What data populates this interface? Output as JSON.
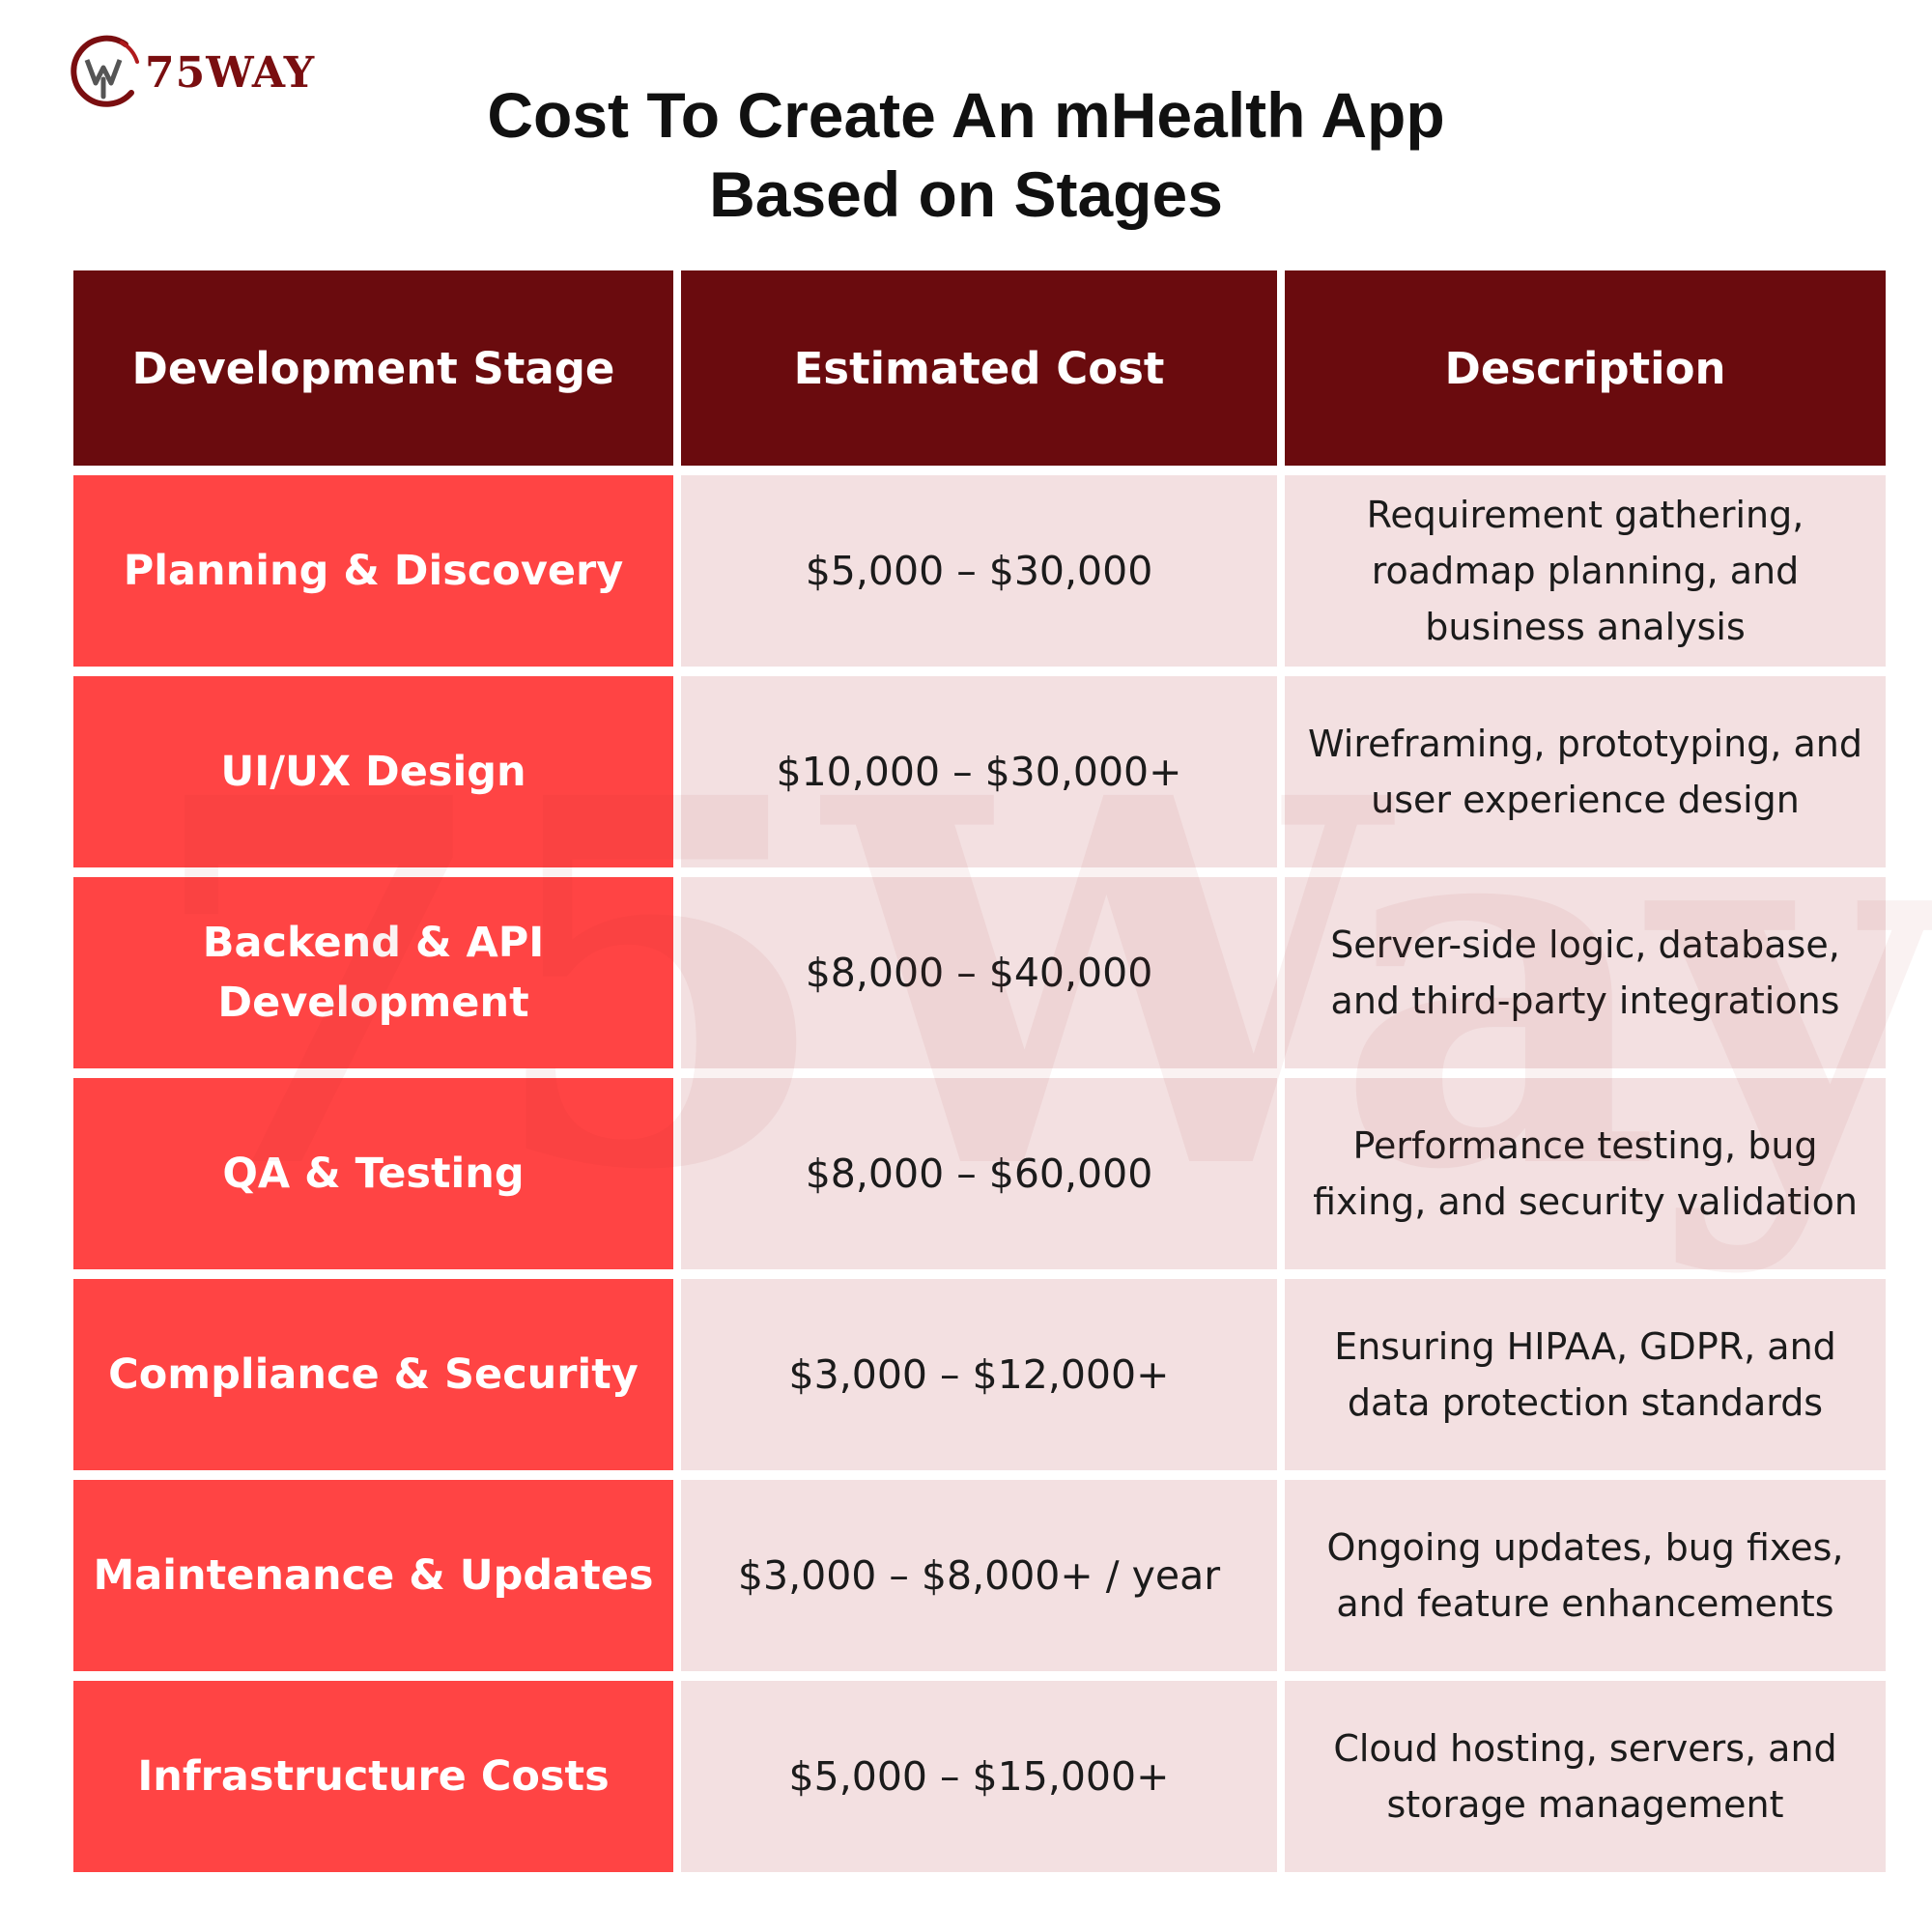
{
  "brand": {
    "name": "75WAY",
    "watermark": "75Way",
    "logo_color": "#7a0e10"
  },
  "title": {
    "line1": "Cost To Create An mHealth App",
    "line2": "Based on Stages"
  },
  "table": {
    "headers": [
      "Development Stage",
      "Estimated Cost",
      "Description"
    ],
    "rows": [
      {
        "stage": "Planning & Discovery",
        "cost": "$5,000 – $30,000",
        "description": "Requirement gathering, roadmap planning, and business analysis"
      },
      {
        "stage": "UI/UX Design",
        "cost": "$10,000 – $30,000+",
        "description": "Wireframing, prototyping, and user experience design"
      },
      {
        "stage": "Backend & API Development",
        "cost": "$8,000 – $40,000",
        "description": "Server-side logic, database, and third-party integrations"
      },
      {
        "stage": "QA & Testing",
        "cost": "$8,000 – $60,000",
        "description": "Performance testing, bug fixing, and security validation"
      },
      {
        "stage": "Compliance & Security",
        "cost": "$3,000 – $12,000+",
        "description": "Ensuring HIPAA, GDPR, and data protection standards"
      },
      {
        "stage": "Maintenance & Updates",
        "cost": "$3,000 – $8,000+ / year",
        "description": "Ongoing updates, bug fixes, and feature enhancements"
      },
      {
        "stage": "Infrastructure Costs",
        "cost": "$5,000 – $15,000+",
        "description": "Cloud hosting, servers, and storage management"
      }
    ]
  },
  "colors": {
    "header_bg": "#6a0b0e",
    "stage_bg": "#ff4444",
    "cell_bg": "#f3e0e1"
  }
}
